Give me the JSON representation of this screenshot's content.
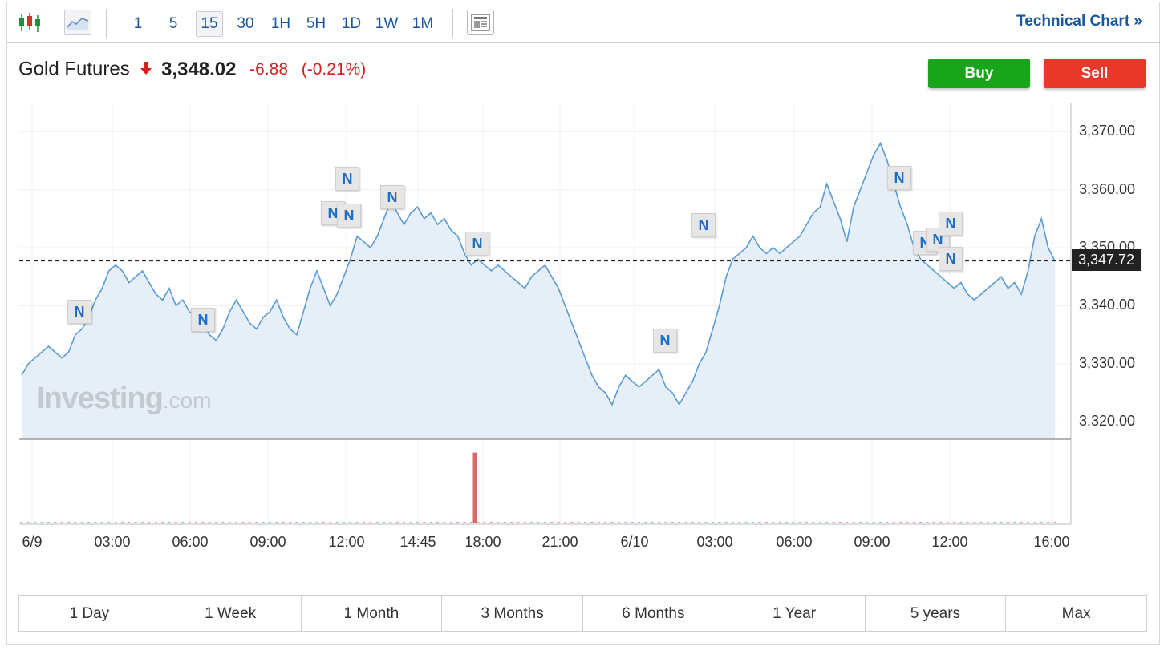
{
  "toolbar": {
    "intervals": [
      "1",
      "5",
      "15",
      "30",
      "1H",
      "5H",
      "1D",
      "1W",
      "1M"
    ],
    "selected_interval": "15",
    "technical_chart": "Technical Chart »"
  },
  "instrument": {
    "name": "Gold Futures",
    "price": "3,348.02",
    "change": "-6.88",
    "change_pct": "(-0.21%)",
    "direction": "down",
    "up_color": "#19a519",
    "down_color": "#d61f1f"
  },
  "actions": {
    "buy": "Buy",
    "sell": "Sell"
  },
  "watermark": {
    "brand": "Investing",
    "suffix": ".com"
  },
  "ranges": [
    "1 Day",
    "1 Week",
    "1 Month",
    "3 Months",
    "6 Months",
    "1 Year",
    "5 years",
    "Max"
  ],
  "news_flag_label": "N",
  "chart_data": {
    "type": "area",
    "line_color": "#5b9bd5",
    "fill_color": "#e6eef7",
    "grid": true,
    "y_ticks": [
      "3,370.00",
      "3,360.00",
      "3,350.00",
      "3,340.00",
      "3,330.00",
      "3,320.00"
    ],
    "ylim": [
      3317,
      3375
    ],
    "last_value_label": "3,347.72",
    "last_value": 3347.72,
    "x_ticks": [
      "6/9",
      "03:00",
      "06:00",
      "09:00",
      "12:00",
      "14:45",
      "18:00",
      "21:00",
      "6/10",
      "03:00",
      "06:00",
      "09:00",
      "12:00",
      "16:00"
    ],
    "values": [
      3328,
      3330,
      3331,
      3332,
      3333,
      3332,
      3331,
      3332,
      3335,
      3336,
      3338,
      3341,
      3343,
      3346,
      3347,
      3346,
      3344,
      3345,
      3346,
      3344,
      3342,
      3341,
      3343,
      3340,
      3341,
      3339,
      3338,
      3337,
      3335,
      3334,
      3336,
      3339,
      3341,
      3339,
      3337,
      3336,
      3338,
      3339,
      3341,
      3338,
      3336,
      3335,
      3339,
      3343,
      3346,
      3343,
      3340,
      3342,
      3345,
      3348,
      3352,
      3351,
      3350,
      3352,
      3355,
      3358,
      3356,
      3354,
      3356,
      3357,
      3355,
      3356,
      3354,
      3355,
      3353,
      3352,
      3349,
      3347,
      3348,
      3347,
      3346,
      3347,
      3346,
      3345,
      3344,
      3343,
      3345,
      3346,
      3347,
      3345,
      3343,
      3340,
      3337,
      3334,
      3331,
      3328,
      3326,
      3325,
      3323,
      3326,
      3328,
      3327,
      3326,
      3327,
      3328,
      3329,
      3326,
      3325,
      3323,
      3325,
      3327,
      3330,
      3332,
      3336,
      3340,
      3345,
      3348,
      3349,
      3350,
      3352,
      3350,
      3349,
      3350,
      3349,
      3350,
      3351,
      3352,
      3354,
      3356,
      3357,
      3361,
      3358,
      3355,
      3351,
      3357,
      3360,
      3363,
      3366,
      3368,
      3365,
      3361,
      3357,
      3354,
      3350,
      3348,
      3347,
      3346,
      3345,
      3344,
      3343,
      3344,
      3342,
      3341,
      3342,
      3343,
      3344,
      3345,
      3343,
      3344,
      3342,
      3346,
      3352,
      3355,
      3350,
      3347.72
    ],
    "volume_up": [
      0.02,
      0.03,
      0.02,
      0.04,
      0.02,
      0.03,
      0.05,
      0.02,
      0.03,
      0.02,
      0.04,
      0.03,
      0.02,
      0.03,
      0.05,
      0.04,
      0.02,
      0.03,
      0.02,
      0.04,
      0.03,
      0.02,
      0.03,
      0.02,
      0.04,
      0.05,
      0.03,
      0.02,
      0.03,
      0.04
    ],
    "volume_spike": 0.95,
    "news_flags_count": 14
  }
}
